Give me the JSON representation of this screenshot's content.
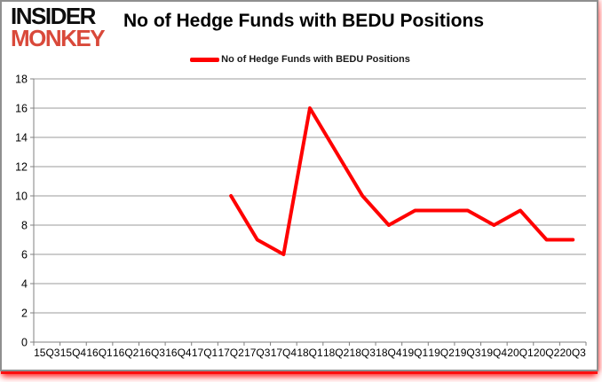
{
  "logo": {
    "line1": "INSIDER",
    "line2": "MONKEY"
  },
  "header": {
    "title": "No of Hedge Funds with BEDU Positions"
  },
  "legend": {
    "label": "No of Hedge Funds with BEDU Positions"
  },
  "colors": {
    "series_line": "#ff0000",
    "logo_primary": "#0d0d0d",
    "logo_accent": "#d9493a",
    "gridline": "#9b9b9b",
    "axis": "#808080",
    "tick_label": "#000000",
    "frame_border": "#8f8f8f",
    "bottom_glow": "#ff0000"
  },
  "chart_data": {
    "type": "line",
    "title": "No of Hedge Funds with BEDU Positions",
    "xlabel": "",
    "ylabel": "",
    "categories": [
      "15Q3",
      "15Q4",
      "16Q1",
      "16Q2",
      "16Q3",
      "16Q4",
      "17Q1",
      "17Q2",
      "17Q3",
      "17Q4",
      "18Q1",
      "18Q2",
      "18Q3",
      "18Q4",
      "19Q1",
      "19Q2",
      "19Q3",
      "19Q4",
      "20Q1",
      "20Q2",
      "20Q3"
    ],
    "series": [
      {
        "name": "No of Hedge Funds with BEDU Positions",
        "color": "#ff0000",
        "values": [
          null,
          null,
          null,
          null,
          null,
          null,
          null,
          10,
          7,
          6,
          16,
          13,
          10,
          8,
          9,
          9,
          9,
          8,
          9,
          7,
          7
        ]
      }
    ],
    "ylim": [
      0,
      18
    ],
    "ytick_step": 2,
    "grid": true,
    "legend_position": "top"
  }
}
